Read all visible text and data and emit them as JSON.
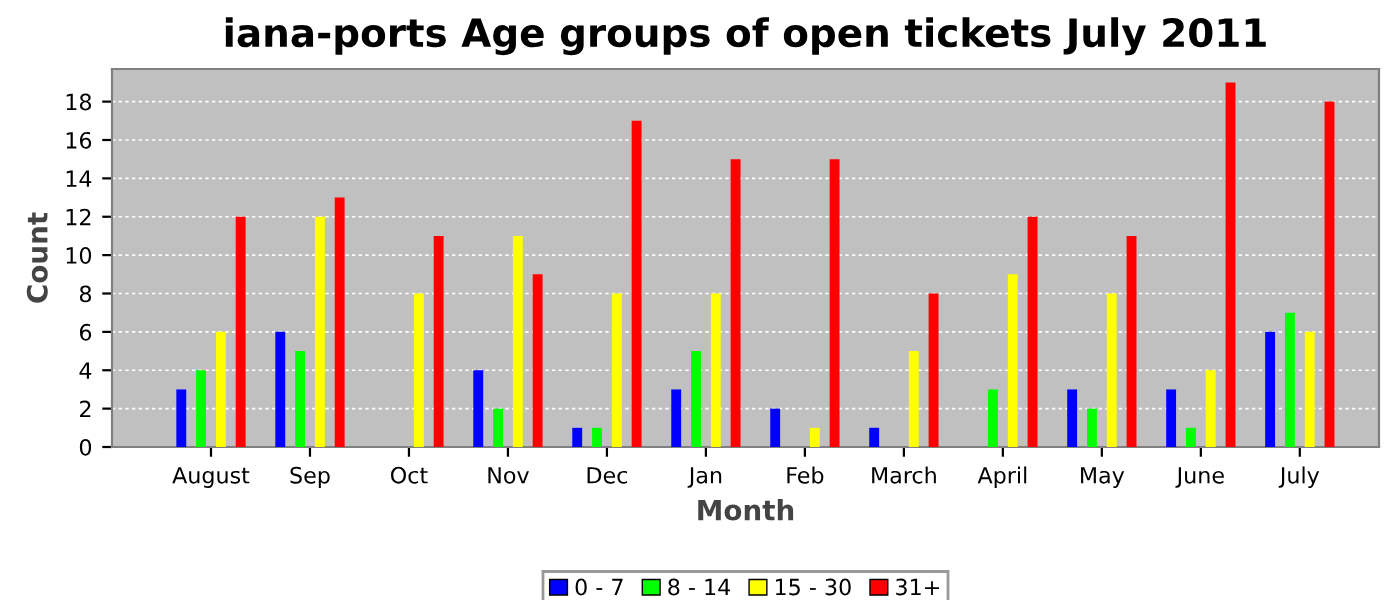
{
  "chart_data": {
    "type": "bar",
    "title": "iana-ports Age groups of open tickets July 2011",
    "xlabel": "Month",
    "ylabel": "Count",
    "categories": [
      "August",
      "Sep",
      "Oct",
      "Nov",
      "Dec",
      "Jan",
      "Feb",
      "March",
      "April",
      "May",
      "June",
      "July"
    ],
    "series": [
      {
        "name": "0 - 7",
        "color": "#0000ff",
        "values": [
          3,
          6,
          0,
          4,
          1,
          3,
          2,
          1,
          0,
          3,
          3,
          6
        ]
      },
      {
        "name": "8 - 14",
        "color": "#00ff00",
        "values": [
          4,
          5,
          0,
          2,
          1,
          5,
          0,
          0,
          3,
          2,
          1,
          7
        ]
      },
      {
        "name": "15 - 30",
        "color": "#ffff00",
        "values": [
          6,
          12,
          8,
          11,
          8,
          8,
          1,
          5,
          9,
          8,
          4,
          6
        ]
      },
      {
        "name": "31+",
        "color": "#ff0000",
        "values": [
          12,
          13,
          11,
          9,
          17,
          15,
          15,
          8,
          12,
          11,
          19,
          18
        ]
      }
    ],
    "ylim": [
      0,
      19.7
    ],
    "yticks": [
      0,
      2,
      4,
      6,
      8,
      10,
      12,
      14,
      16,
      18
    ],
    "grid": "y",
    "legend": "bottom"
  }
}
